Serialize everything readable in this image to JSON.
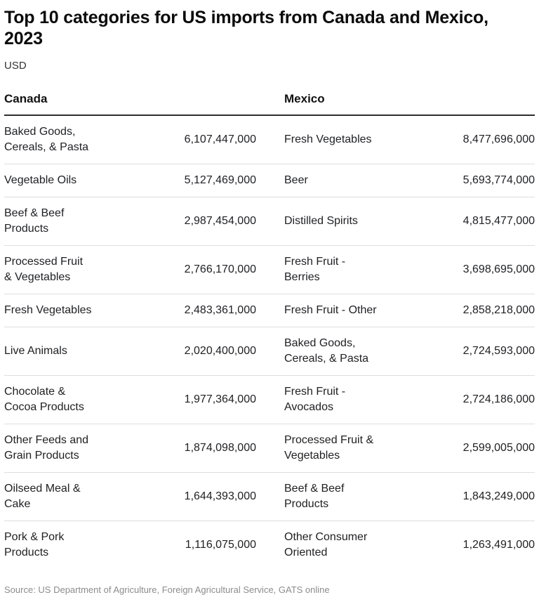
{
  "header": {
    "title": "Top 10 categories for US imports from Canada and Mexico,\n2023",
    "subtitle": "USD"
  },
  "table": {
    "columns": [
      {
        "header": "Canada"
      },
      {
        "header": "Mexico"
      }
    ],
    "rows": [
      {
        "canada": {
          "label": "Baked Goods,\nCereals, & Pasta",
          "value": "6,107,447,000"
        },
        "mexico": {
          "label": "Fresh Vegetables",
          "value": "8,477,696,000"
        }
      },
      {
        "canada": {
          "label": "Vegetable Oils",
          "value": "5,127,469,000"
        },
        "mexico": {
          "label": "Beer",
          "value": "5,693,774,000"
        }
      },
      {
        "canada": {
          "label": "Beef & Beef\nProducts",
          "value": "2,987,454,000"
        },
        "mexico": {
          "label": "Distilled Spirits",
          "value": "4,815,477,000"
        }
      },
      {
        "canada": {
          "label": "Processed Fruit\n& Vegetables",
          "value": "2,766,170,000"
        },
        "mexico": {
          "label": "Fresh Fruit -\nBerries",
          "value": "3,698,695,000"
        }
      },
      {
        "canada": {
          "label": "Fresh Vegetables",
          "value": "2,483,361,000"
        },
        "mexico": {
          "label": "Fresh Fruit - Other",
          "value": "2,858,218,000"
        }
      },
      {
        "canada": {
          "label": "Live Animals",
          "value": "2,020,400,000"
        },
        "mexico": {
          "label": "Baked Goods,\nCereals, & Pasta",
          "value": "2,724,593,000"
        }
      },
      {
        "canada": {
          "label": "Chocolate &\nCocoa Products",
          "value": "1,977,364,000"
        },
        "mexico": {
          "label": "Fresh Fruit -\nAvocados",
          "value": "2,724,186,000"
        }
      },
      {
        "canada": {
          "label": "Other Feeds and\nGrain Products",
          "value": "1,874,098,000"
        },
        "mexico": {
          "label": "Processed Fruit &\nVegetables",
          "value": "2,599,005,000"
        }
      },
      {
        "canada": {
          "label": "Oilseed Meal &\nCake",
          "value": "1,644,393,000"
        },
        "mexico": {
          "label": "Beef & Beef\nProducts",
          "value": "1,843,249,000"
        }
      },
      {
        "canada": {
          "label": "Pork & Pork\nProducts",
          "value": "1,116,075,000"
        },
        "mexico": {
          "label": "Other Consumer\nOriented",
          "value": "1,263,491,000"
        }
      }
    ]
  },
  "footer": {
    "source": "Source: US Department of Agriculture, Foreign Agricultural Service, GATS online"
  },
  "chart_data": {
    "type": "table",
    "title": "Top 10 categories for US imports from Canada and Mexico, 2023",
    "subtitle": "USD",
    "columns": [
      "Canada",
      "Mexico"
    ],
    "series": [
      {
        "name": "Canada",
        "categories": [
          "Baked Goods, Cereals, & Pasta",
          "Vegetable Oils",
          "Beef & Beef Products",
          "Processed Fruit & Vegetables",
          "Fresh Vegetables",
          "Live Animals",
          "Chocolate & Cocoa Products",
          "Other Feeds and Grain Products",
          "Oilseed Meal & Cake",
          "Pork & Pork Products"
        ],
        "values": [
          6107447000,
          5127469000,
          2987454000,
          2766170000,
          2483361000,
          2020400000,
          1977364000,
          1874098000,
          1644393000,
          1116075000
        ]
      },
      {
        "name": "Mexico",
        "categories": [
          "Fresh Vegetables",
          "Beer",
          "Distilled Spirits",
          "Fresh Fruit - Berries",
          "Fresh Fruit - Other",
          "Baked Goods, Cereals, & Pasta",
          "Fresh Fruit - Avocados",
          "Processed Fruit & Vegetables",
          "Beef & Beef Products",
          "Other Consumer Oriented"
        ],
        "values": [
          8477696000,
          5693774000,
          4815477000,
          3698695000,
          2858218000,
          2724593000,
          2724186000,
          2599005000,
          1843249000,
          1263491000
        ]
      }
    ],
    "unit": "USD",
    "source": "Source: US Department of Agriculture, Foreign Agricultural Service, GATS online"
  }
}
